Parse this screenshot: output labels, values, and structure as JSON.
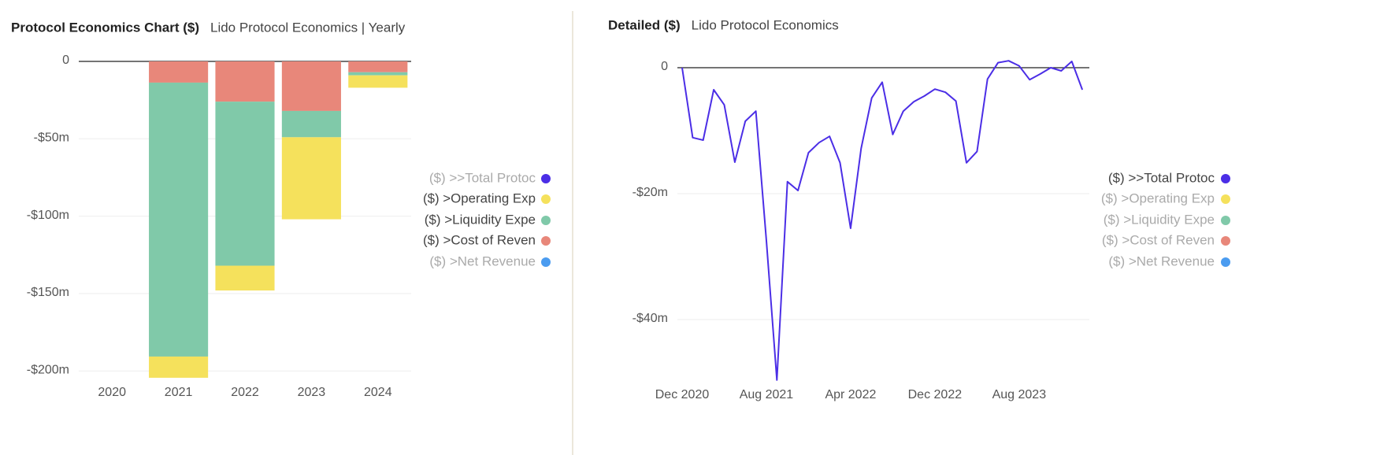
{
  "chart_data": [
    {
      "type": "bar",
      "stacked": true,
      "title": "Protocol Economics Chart ($)",
      "subtitle": "Lido Protocol Economics | Yearly",
      "categories": [
        "2020",
        "2021",
        "2022",
        "2023",
        "2024"
      ],
      "series": [
        {
          "color": "#e8877a",
          "values": [
            0,
            -13.7,
            -26,
            -32,
            -7
          ]
        },
        {
          "color": "#80c9a9",
          "values": [
            0,
            -177,
            -106,
            -17,
            -2
          ]
        },
        {
          "color": "#f5e15c",
          "values": [
            0,
            -13.7,
            -16,
            -53,
            -8
          ]
        }
      ],
      "ylim": [
        -207,
        0
      ],
      "yticks": [
        0,
        {
          "value": -50,
          "label": "-$50m"
        },
        {
          "value": -100,
          "label": "-$100m"
        },
        {
          "value": -150,
          "label": "-$150m"
        },
        {
          "value": -200,
          "label": "-$200m"
        }
      ],
      "grid": true,
      "legend_position": "right",
      "legend": [
        {
          "name": "($) >>Total Protoc",
          "color": "#4b2ee6",
          "enabled": false
        },
        {
          "name": "($) >Operating Exp",
          "color": "#f5e15c",
          "enabled": true
        },
        {
          "name": "($) >Liquidity Expe",
          "color": "#80c9a9",
          "enabled": true
        },
        {
          "name": "($) >Cost of Reven",
          "color": "#e8877a",
          "enabled": true
        },
        {
          "name": "($) >Net Revenue",
          "color": "#4b9cf0",
          "enabled": false
        }
      ]
    },
    {
      "type": "line",
      "title": "Detailed ($)",
      "subtitle": "Lido Protocol Economics",
      "categories": [
        "Dec 2020",
        null,
        null,
        null,
        null,
        null,
        null,
        null,
        "Aug 2021",
        null,
        null,
        null,
        null,
        null,
        null,
        null,
        "Apr 2022",
        null,
        null,
        null,
        null,
        null,
        null,
        null,
        "Dec 2022",
        null,
        null,
        null,
        null,
        null,
        null,
        null,
        "Aug 2023",
        null,
        null,
        null,
        null,
        null,
        null
      ],
      "series": [
        {
          "color": "#4b2ee6",
          "values": [
            0,
            -11.1,
            -11.5,
            -3.5,
            -5.9,
            -15,
            -8.5,
            -6.9,
            -27.5,
            -49.6,
            -18.1,
            -19.5,
            -13.5,
            -11.9,
            -10.9,
            -15.1,
            -25.5,
            -12.8,
            -4.8,
            -2.3,
            -10.6,
            -6.9,
            -5.4,
            -4.5,
            -3.4,
            -3.9,
            -5.3,
            -15.1,
            -13.3,
            -1.8,
            0.8,
            1.1,
            0.3,
            -1.9,
            -1,
            0,
            -0.5,
            1,
            -3.5
          ]
        }
      ],
      "ylim": [
        -50.5,
        2
      ],
      "yticks": [
        0,
        {
          "value": -20,
          "label": "-$20m"
        },
        {
          "value": -40,
          "label": "-$40m"
        }
      ],
      "grid": true,
      "legend_position": "right",
      "legend": [
        {
          "name": "($) >>Total Protoc",
          "color": "#4b2ee6",
          "enabled": true
        },
        {
          "name": "($) >Operating Exp",
          "color": "#f5e15c",
          "enabled": false
        },
        {
          "name": "($) >Liquidity Expe",
          "color": "#80c9a9",
          "enabled": false
        },
        {
          "name": "($) >Cost of Reven",
          "color": "#e8877a",
          "enabled": false
        },
        {
          "name": "($) >Net Revenue",
          "color": "#4b9cf0",
          "enabled": false
        }
      ]
    }
  ]
}
